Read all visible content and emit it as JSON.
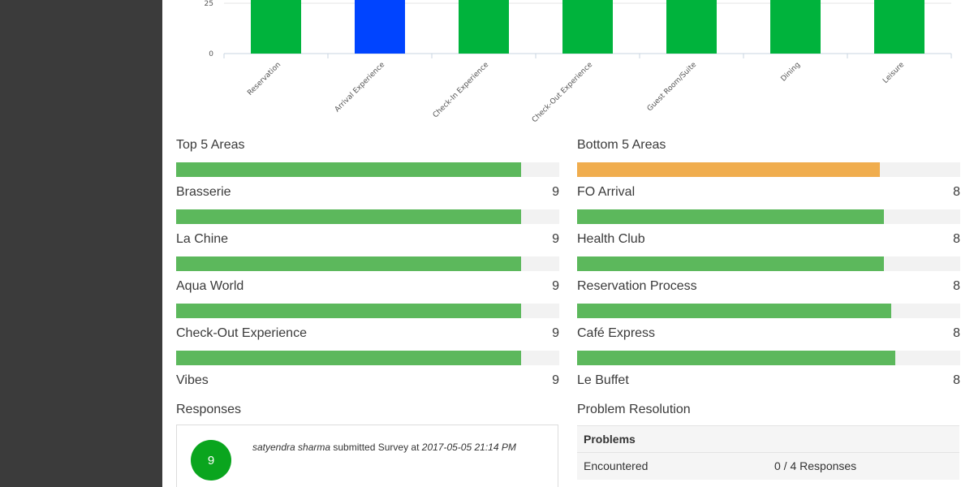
{
  "chart_data": {
    "type": "bar",
    "categories": [
      "Reservation",
      "Arrival Experience",
      "Check-In Experience",
      "Check-Out Experience",
      "Guest Room/Suite",
      "Dining",
      "Leisure"
    ],
    "values": [
      40,
      40,
      40,
      40,
      40,
      40,
      40
    ],
    "bar_colors": [
      "#00b33c",
      "#0044ff",
      "#00b33c",
      "#00b33c",
      "#00b33c",
      "#00b33c",
      "#00b33c"
    ],
    "y_ticks": [
      "0",
      "25"
    ],
    "ylim": [
      0,
      25
    ]
  },
  "top_areas": {
    "title": "Top 5 Areas",
    "header_fill": 0.9,
    "header_color": "#5cb85c",
    "items": [
      {
        "label": "Brasserie",
        "value": "9",
        "fill": 0.9
      },
      {
        "label": "La Chine",
        "value": "9",
        "fill": 0.9
      },
      {
        "label": "Aqua World",
        "value": "9",
        "fill": 0.9
      },
      {
        "label": "Check-Out Experience",
        "value": "9",
        "fill": 0.9
      },
      {
        "label": "Vibes",
        "value": "9"
      }
    ],
    "bar_color": "#5cb85c"
  },
  "bottom_areas": {
    "title": "Bottom 5 Areas",
    "header_fill": 0.79,
    "header_color": "#f0ad4e",
    "items": [
      {
        "label": "FO Arrival",
        "value": "8",
        "fill": 0.8
      },
      {
        "label": "Health Club",
        "value": "8",
        "fill": 0.8
      },
      {
        "label": "Reservation Process",
        "value": "8",
        "fill": 0.82
      },
      {
        "label": "Café Express",
        "value": "8",
        "fill": 0.83
      },
      {
        "label": "Le Buffet",
        "value": "8"
      }
    ],
    "bar_color": "#5cb85c"
  },
  "responses": {
    "title": "Responses",
    "score": "9",
    "user": "satyendra sharma",
    "action": " submitted Survey at ",
    "timestamp": "2017-05-05 21:14 PM"
  },
  "problem_resolution": {
    "title": "Problem Resolution",
    "header": "Problems",
    "rows": [
      {
        "label": "Encountered",
        "value": "0 / 4 Responses"
      }
    ]
  }
}
